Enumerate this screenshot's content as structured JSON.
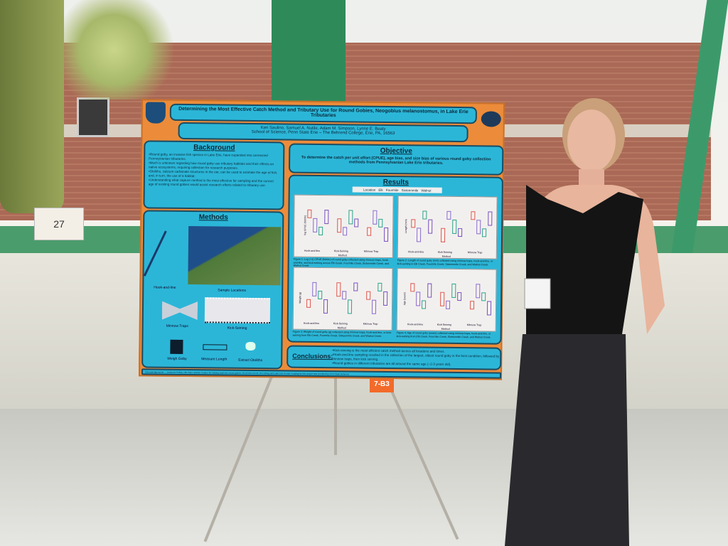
{
  "scene": {
    "sign_label": "7-B3",
    "box_label": "27"
  },
  "poster": {
    "title": "Determining the Most Effective Catch Method and Tributary Use for Round Gobies, Neogobius melanostomus, in Lake Erie Tributaries",
    "authors": "Keri Saulino, Samuel A. Nutile, Adam M. Simpson, Lynne E. Beaty",
    "affiliation": "School of Science, Penn State Erie – The Behrend College, Erie, PA, 16563",
    "background": {
      "heading": "Background",
      "bullets": [
        "•Round goby, an invasive fish species in Lake Erie, have expanded into connected Pennsylvanian tributaries.",
        "•Much is unknown regarding how round goby use tributary habitats and their effects on native ecosystems, requiring collection for research purposes.",
        "•Otoliths, calcium carbonate structures in the ear, can be used to estimate the age of fish, and, in turn, the use of a habitat.",
        "•Understanding what capture method is the most effective for sampling and the current age of existing round gobies would assist research efforts related to tributary use."
      ]
    },
    "methods": {
      "heading": "Methods",
      "labels": [
        "Hook-and-line",
        "Sample Locations",
        "Minnow Traps",
        "Kick-Seining",
        "Weigh Goby",
        "Measure Length",
        "Extract Otoliths"
      ]
    },
    "objective": {
      "heading": "Objective",
      "text": "To determine the catch per unit effort (CPUE), age bias, and size bias of various round goby collection methods from Pennsylvanian Lake Erie tributaries."
    },
    "results": {
      "heading": "Results",
      "legend_title": "Location",
      "legend": [
        "Elk",
        "Fourmile",
        "Sixteenmile",
        "Walnut"
      ],
      "figures": [
        {
          "ylabel": "log CPUE (fish/hr)",
          "xlabel": "Method",
          "cats": [
            "Hook-and-line",
            "Kick-Seining",
            "Minnow Trap"
          ],
          "caption": "Figure 1: Log (+1) CPUE (fish/hr) of round goby collected using minnow traps, hook-and-line, and kick-seining across Elk Creek, Fourmile Creek, Sixteenmile Creek, and Walnut Creek."
        },
        {
          "ylabel": "Length (mm)",
          "xlabel": "Method",
          "cats": [
            "Hook-and-line",
            "Kick-Seining",
            "Minnow Trap"
          ],
          "caption": "Figure 2: Length of round goby (mm) collected using minnow traps, hook-and-line, or kick-seining in Elk Creek, Fourmile Creek, Sixteenmile Creek, and Walnut Creek."
        },
        {
          "ylabel": "Weight (g)",
          "xlabel": "Method",
          "cats": [
            "Hook-and-line",
            "Kick-Seining",
            "Minnow Trap"
          ],
          "caption": "Figure 3: Weight of round goby (g) collected using minnow traps, hook-and-line, or kick-seining from Elk Creek, Fourmile Creek, Sixteenmile Creek, and Walnut Creek."
        },
        {
          "ylabel": "Age (years)",
          "xlabel": "Method",
          "cats": [
            "Hook-and-line",
            "Kick-Seining",
            "Minnow Trap"
          ],
          "caption": "Figure 4: Age of round goby (years) collected using minnow traps, hook-and-line, or kick-seining from Elk Creek, Fourmile Creek, Sixteenmile Creek, and Walnut Creek."
        }
      ]
    },
    "conclusions": {
      "heading": "Conclusions:",
      "bullets": [
        "•Kick-seining is the most efficient catch method across all locations and times.",
        "•Hook-and-line sampling resulted in the collection of the largest, oldest round goby in the best condition, followed by minnow traps, then kick seining.",
        "•Round gobies in different tributaries are all around the same age (~2-3 years old)."
      ]
    },
    "acknowledgements": "Acknowledgements: ... Deborah Phillips, Olli Tilton, Braden Cooper for helping catch the round gobies; PA DCNR Permit; PA Fishing and Lake Erie Permit. Funding for this project was provided by Penn State Behrend."
  },
  "colors": {
    "poster_orange": "#ec8c3a",
    "panel_blue": "#2bb6d8",
    "legend": [
      "#e0584f",
      "#8a6bd0",
      "#2aa58a",
      "#7a4fc2"
    ]
  }
}
